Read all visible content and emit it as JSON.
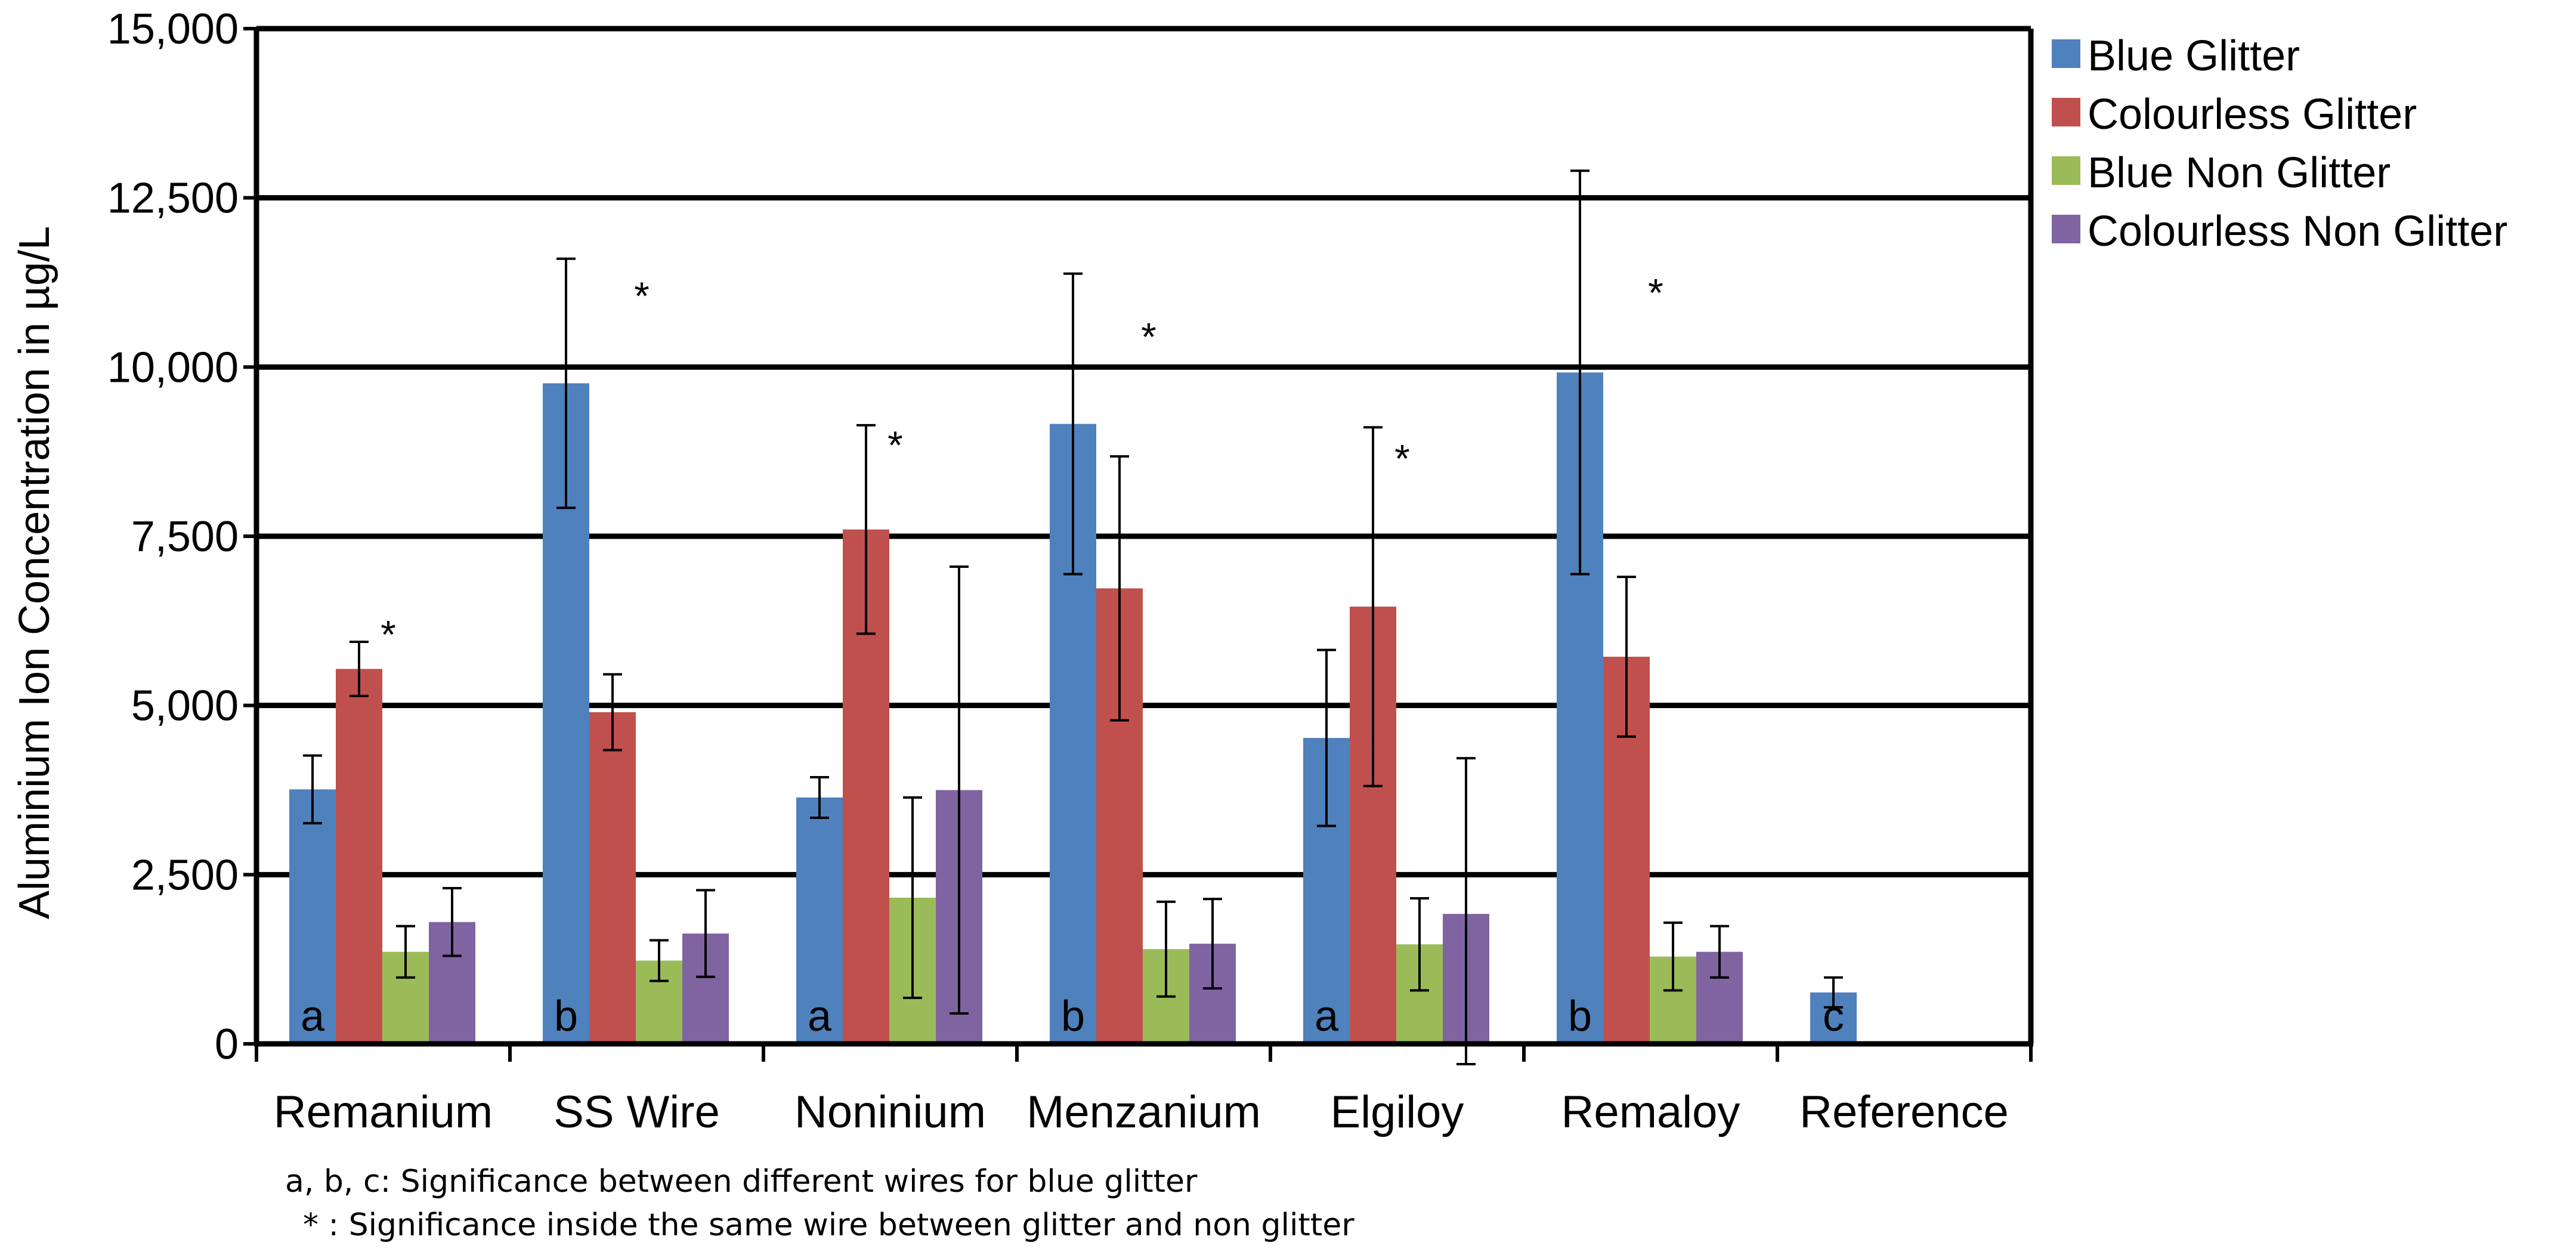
{
  "chart_data": {
    "type": "bar",
    "title": "",
    "xlabel": "",
    "ylabel": "Aluminium Ion Concentration in µg/L",
    "ylim": [
      0,
      15000
    ],
    "yticks": [
      "0",
      "2,500",
      "5,000",
      "7,500",
      "10,000",
      "12,500",
      "15,000"
    ],
    "ytick_values": [
      0,
      2500,
      5000,
      7500,
      10000,
      12500,
      15000
    ],
    "grid": true,
    "legend_position": "top-right",
    "categories": [
      "Remanium",
      "SS Wire",
      "Noninium",
      "Menzanium",
      "Elgiloy",
      "Remaloy",
      "Reference"
    ],
    "series": [
      {
        "name": "Blue Glitter",
        "color": "#4f81bd",
        "values": [
          3760,
          9760,
          3640,
          9160,
          4520,
          9920,
          760
        ],
        "errors": [
          500,
          1840,
          300,
          2220,
          1300,
          2980,
          220
        ]
      },
      {
        "name": "Colourless Glitter",
        "color": "#c0504d",
        "values": [
          5540,
          4900,
          7600,
          6730,
          6460,
          5720,
          null
        ],
        "errors": [
          400,
          560,
          1540,
          1950,
          2650,
          1180,
          null
        ]
      },
      {
        "name": "Blue Non Glitter",
        "color": "#9bbb59",
        "values": [
          1360,
          1230,
          2160,
          1400,
          1470,
          1290,
          null
        ],
        "errors": [
          380,
          300,
          1480,
          700,
          680,
          500,
          null
        ]
      },
      {
        "name": "Colourless Non Glitter",
        "color": "#8064a2",
        "values": [
          1800,
          1630,
          3750,
          1480,
          1920,
          1360,
          null
        ],
        "errors": [
          500,
          640,
          3300,
          660,
          2300,
          380,
          null
        ]
      }
    ],
    "bar_letters": [
      "a",
      "b",
      "a",
      "b",
      "a",
      "b",
      "c"
    ],
    "stars": [
      {
        "category": "Remanium",
        "label": "*",
        "value": 6200
      },
      {
        "category": "SS Wire",
        "label": "*",
        "value": 11200
      },
      {
        "category": "Noninium",
        "label": "*",
        "value": 9000
      },
      {
        "category": "Menzanium",
        "label": "*",
        "value": 10600
      },
      {
        "category": "Elgiloy",
        "label": "*",
        "value": 8800
      },
      {
        "category": "Remaloy",
        "label": "*",
        "value": 11250
      }
    ],
    "notes": [
      "a, b, c: Significance between different wires for blue glitter",
      "*  : Significance inside the same wire between glitter and non  glitter"
    ]
  }
}
